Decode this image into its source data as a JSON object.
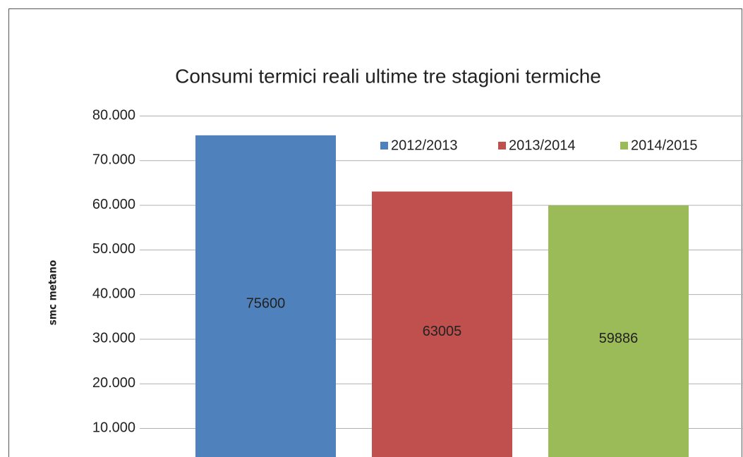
{
  "chart_data": {
    "type": "bar",
    "title": "Consumi termici reali ultime tre stagioni termiche",
    "y_label": "smc metano",
    "categories": [
      null
    ],
    "series": [
      {
        "name": "2012/2013",
        "color": "#4f81bd",
        "values": [
          75600
        ]
      },
      {
        "name": "2013/2014",
        "color": "#c0504d",
        "values": [
          63005
        ]
      },
      {
        "name": "2014/2015",
        "color": "#9bbb59",
        "values": [
          59886
        ]
      }
    ],
    "ylim": [
      0,
      80000
    ],
    "yticks": [
      {
        "value": 10000,
        "label": "10.000"
      },
      {
        "value": 20000,
        "label": "20.000"
      },
      {
        "value": 30000,
        "label": "30.000"
      },
      {
        "value": 40000,
        "label": "40.000"
      },
      {
        "value": 50000,
        "label": "50.000"
      },
      {
        "value": 60000,
        "label": "60.000"
      },
      {
        "value": 70000,
        "label": "70.000"
      },
      {
        "value": 80000,
        "label": "80.000"
      }
    ],
    "grid": true,
    "legend": "top-right"
  }
}
